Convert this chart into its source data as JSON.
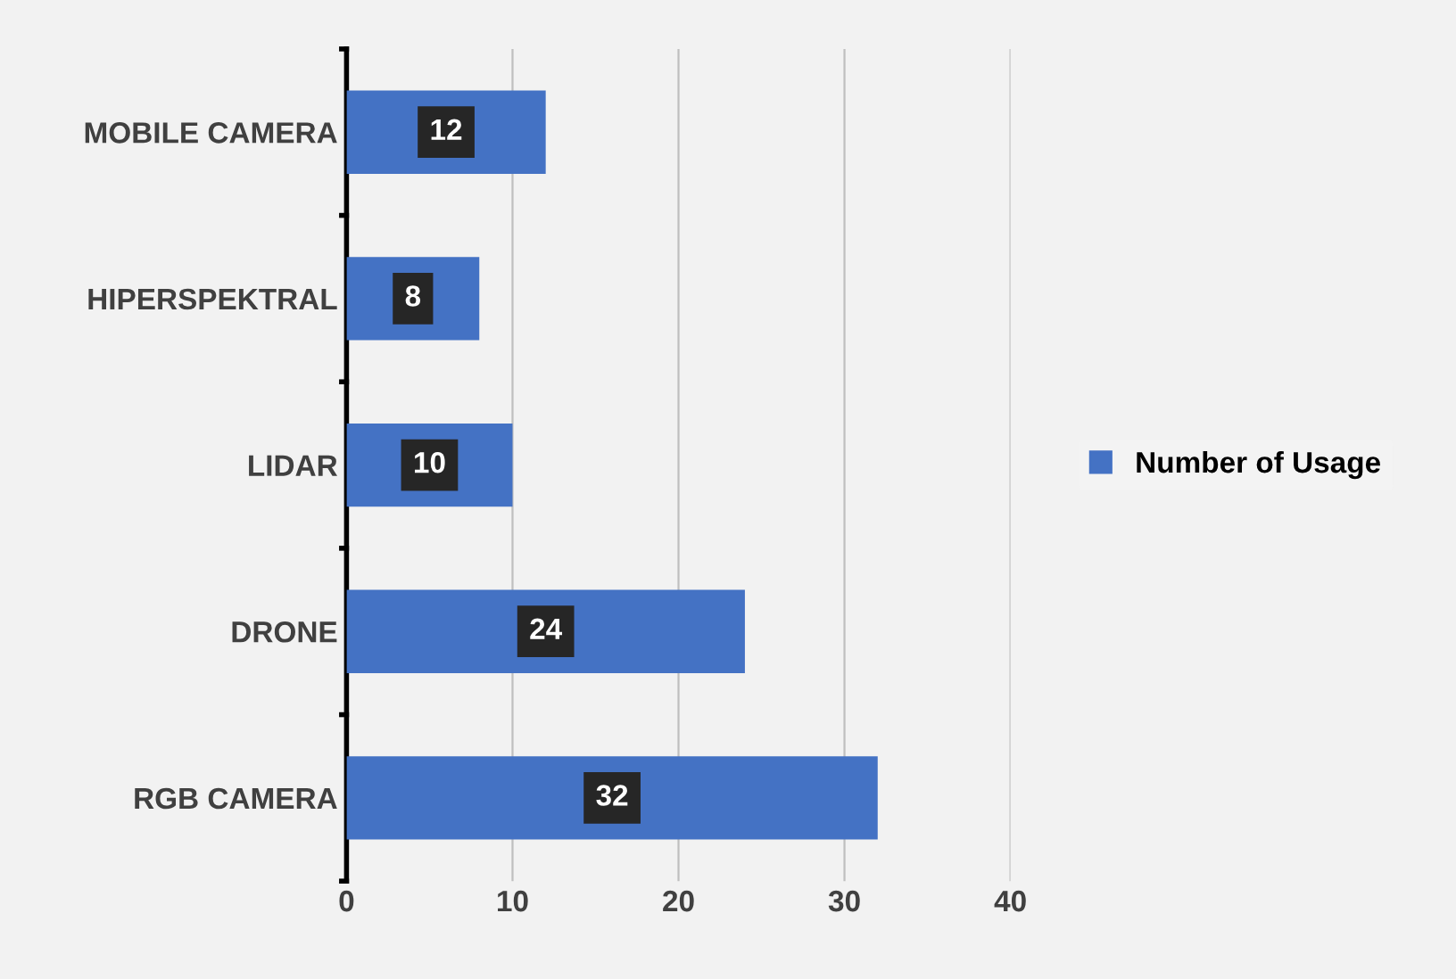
{
  "chart_data": {
    "type": "bar",
    "orientation": "horizontal",
    "categories": [
      "MOBILE CAMERA",
      "HIPERSPEKTRAL",
      "LIDAR",
      "DRONE",
      "RGB CAMERA"
    ],
    "series": [
      {
        "name": "Number of Usage",
        "color": "#4472c4",
        "values": [
          12,
          8,
          10,
          24,
          32
        ]
      }
    ],
    "xlim": [
      0,
      40
    ],
    "xticks": [
      0,
      10,
      20,
      30,
      40
    ],
    "grid": "x",
    "legend": "right",
    "data_labels": true
  }
}
